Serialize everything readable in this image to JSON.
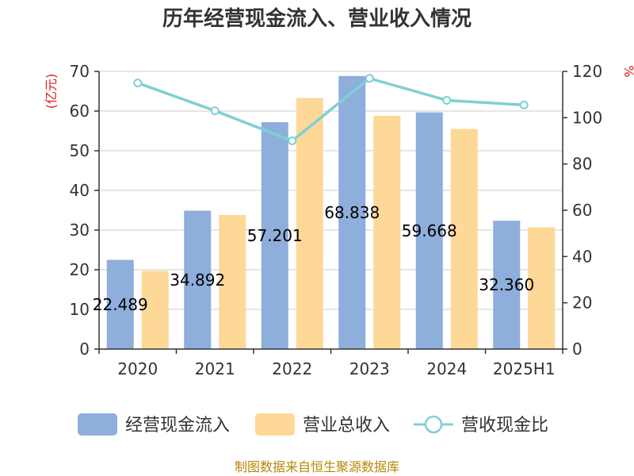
{
  "chart_data": {
    "type": "bar",
    "title": "历年经营现金流入、营业收入情况",
    "categories": [
      "2020",
      "2021",
      "2022",
      "2023",
      "2024",
      "2025H1"
    ],
    "series": [
      {
        "name": "经营现金流入",
        "axis": "left",
        "kind": "bar",
        "values": [
          22.489,
          34.892,
          57.201,
          68.838,
          59.668,
          32.36
        ],
        "labels": [
          "22.489",
          "34.892",
          "57.201",
          "68.838",
          "59.668",
          "32.360"
        ]
      },
      {
        "name": "营业总收入",
        "axis": "left",
        "kind": "bar",
        "values": [
          19.7,
          33.8,
          63.3,
          58.8,
          55.5,
          30.7
        ]
      },
      {
        "name": "营收现金比",
        "axis": "right",
        "kind": "line",
        "values": [
          115,
          103,
          90,
          117,
          107.5,
          105.5
        ]
      }
    ],
    "y_left": {
      "unit": "(亿元)",
      "min": 0,
      "max": 70,
      "ticks": [
        0,
        10,
        20,
        30,
        40,
        50,
        60,
        70
      ]
    },
    "y_right": {
      "unit": "%",
      "min": 0,
      "max": 120,
      "ticks": [
        0,
        20,
        40,
        60,
        80,
        100,
        120
      ]
    },
    "grid": true,
    "legend_position": "bottom"
  },
  "colors": {
    "cash_inflow": "#8eaedb",
    "revenue": "#fed897",
    "ratio_line": "#7fd0d4",
    "axis": "#333333",
    "grid": "#cccccc"
  },
  "source": "制图数据来自恒生聚源数据库"
}
